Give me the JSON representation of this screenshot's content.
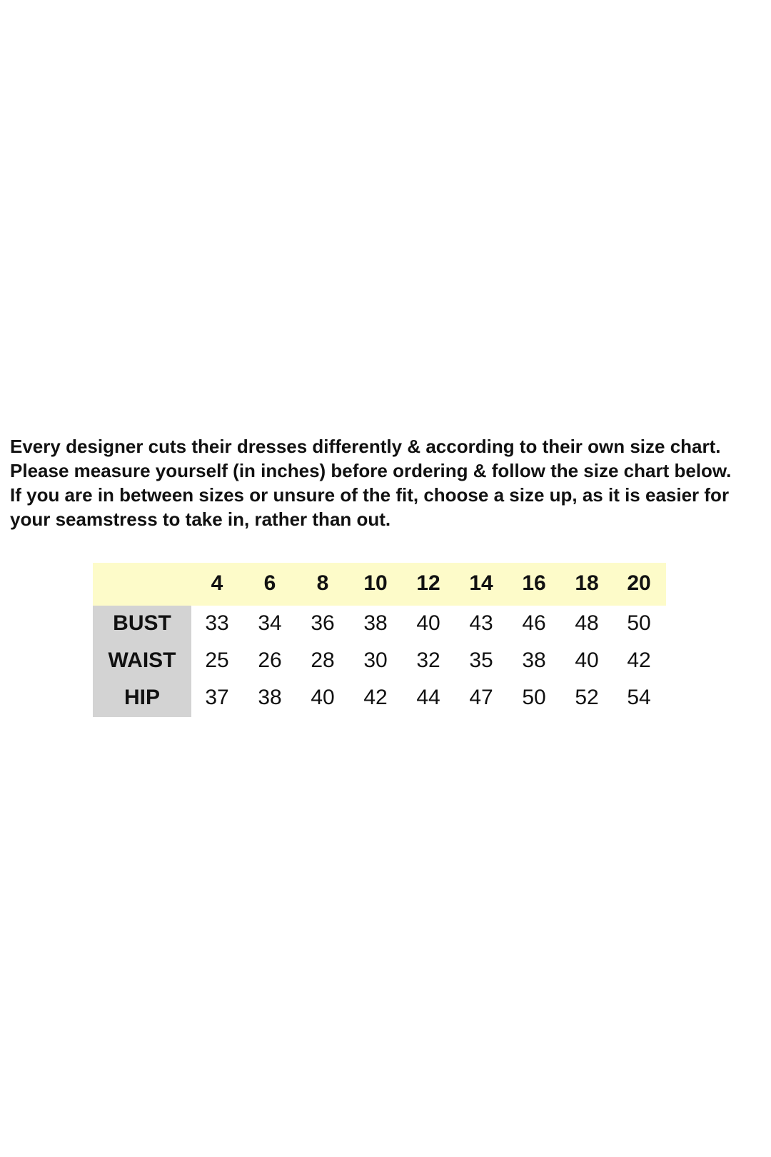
{
  "intro": {
    "paragraph1": "Every designer cuts their dresses differently & according to their own size chart. Please measure yourself (in inches) before ordering & follow the size chart below.",
    "paragraph2": "If you are in between sizes or unsure of the fit, choose a size up, as it is easier for your seamstress to take in, rather than out."
  },
  "size_table": {
    "header_color": "#fdfbc9",
    "label_column_color": "#d3d3d3",
    "sizes": [
      "4",
      "6",
      "8",
      "10",
      "12",
      "14",
      "16",
      "18",
      "20"
    ],
    "rows": [
      {
        "label": "BUST",
        "values": [
          "33",
          "34",
          "36",
          "38",
          "40",
          "43",
          "46",
          "48",
          "50"
        ]
      },
      {
        "label": "WAIST",
        "values": [
          "25",
          "26",
          "28",
          "30",
          "32",
          "35",
          "38",
          "40",
          "42"
        ]
      },
      {
        "label": "HIP",
        "values": [
          "37",
          "38",
          "40",
          "42",
          "44",
          "47",
          "50",
          "52",
          "54"
        ]
      }
    ]
  }
}
